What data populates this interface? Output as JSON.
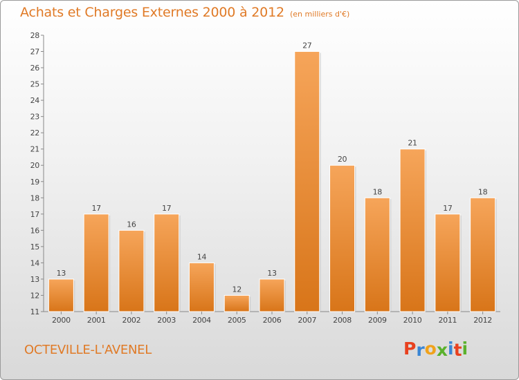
{
  "header": {
    "title": "Achats et Charges Externes 2000 à 2012",
    "unit": "(en milliers d'€)"
  },
  "footer": {
    "place": "OCTEVILLE-L'AVENEL",
    "logo_text": "Proxiti"
  },
  "colors": {
    "accent": "#e07a26",
    "bar_light": "#f6a55a",
    "bar_dark": "#d87519",
    "logo_letters": [
      "#e8411f",
      "#3a86d4",
      "#f0a21b",
      "#5ab12c",
      "#3a86d4",
      "#e8411f",
      "#5ab12c"
    ]
  },
  "chart_data": {
    "type": "bar",
    "title": "Achats et Charges Externes 2000 à 2012",
    "subtitle": "(en milliers d'€)",
    "xlabel": "",
    "ylabel": "",
    "categories": [
      "2000",
      "2001",
      "2002",
      "2003",
      "2004",
      "2005",
      "2006",
      "2007",
      "2008",
      "2009",
      "2010",
      "2011",
      "2012"
    ],
    "values": [
      13,
      17,
      16,
      17,
      14,
      12,
      13,
      27,
      20,
      18,
      21,
      17,
      18
    ],
    "ylim": [
      11,
      28
    ],
    "yticks": [
      11,
      12,
      13,
      14,
      15,
      16,
      17,
      18,
      19,
      20,
      21,
      22,
      23,
      24,
      25,
      26,
      27,
      28
    ],
    "grid": false,
    "data_labels": true
  }
}
